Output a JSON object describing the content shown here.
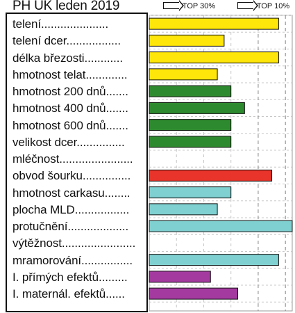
{
  "chart_data": {
    "type": "bar",
    "title": "PH UK leden 2019",
    "legend": [
      "TOP 30%",
      "TOP 10%"
    ],
    "categories": [
      "telení.....................",
      "telení dcer.................",
      "délka březosti............",
      "hmotnost telat.............",
      "hmotnost 200 dnů.......",
      "hmotnost 400 dnů.......",
      "hmotnost 600 dnů.......",
      "velikost dcer...............",
      "mléčnost.......................",
      "obvod šourku...............",
      "hmotnost carkasu........",
      "plocha MLD.................",
      "protučnění...................",
      "výtěžnost.......................",
      "mramorování................",
      "I. přímých efektů.........",
      "I. maternál. efektů......"
    ],
    "values": [
      111,
      103,
      111,
      102,
      104,
      106,
      104,
      104,
      null,
      110,
      104,
      102,
      113,
      null,
      111,
      101,
      105
    ],
    "colors": [
      "#ffe60a",
      "#ffe60a",
      "#ffe60a",
      "#ffe60a",
      "#2e8a2e",
      "#2e8a2e",
      "#2e8a2e",
      "#2e8a2e",
      "",
      "#e8342a",
      "#7fd0d0",
      "#7fd0d0",
      "#7fd0d0",
      "",
      "#7fd0d0",
      "#a43aa0",
      "#a43aa0"
    ],
    "xlim": [
      92,
      113
    ],
    "thresholds": [
      108,
      112
    ],
    "grid": true
  }
}
